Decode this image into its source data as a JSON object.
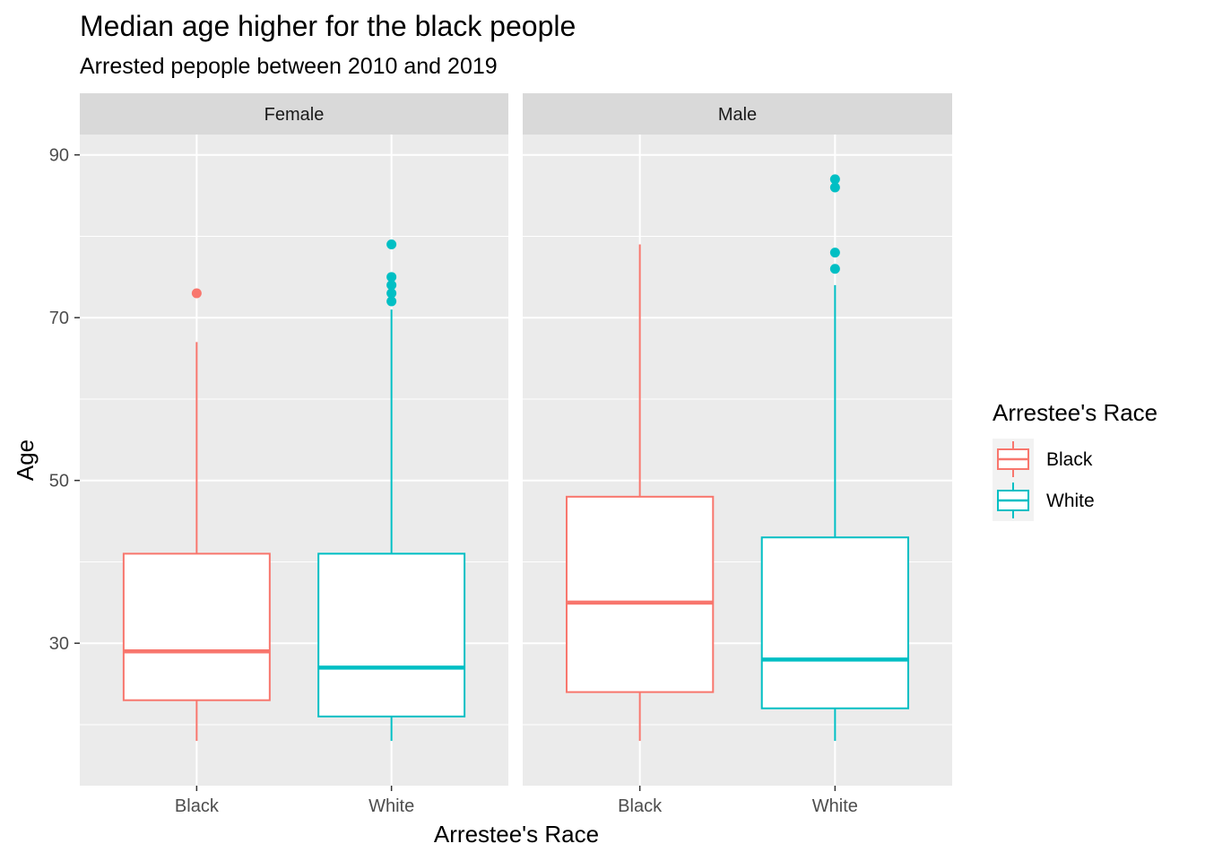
{
  "chart_data": {
    "type": "boxplot",
    "title": "Median age higher for the black people",
    "subtitle": "Arrested pepople between 2010 and 2019",
    "xlabel": "Arrestee's Race",
    "ylabel": "Age",
    "ylim": [
      12.5,
      92.5
    ],
    "yticks": [
      30,
      50,
      70,
      90
    ],
    "categories": [
      "Black",
      "White"
    ],
    "grid": true,
    "legend": {
      "title": "Arrestee's Race",
      "placement": "right",
      "entries": [
        {
          "label": "Black",
          "color": "#F8766D"
        },
        {
          "label": "White",
          "color": "#00BFC4"
        }
      ]
    },
    "facets": [
      {
        "label": "Female",
        "boxes": [
          {
            "category": "Black",
            "color": "#F8766D",
            "min": 18,
            "q1": 23,
            "median": 29,
            "q3": 41,
            "max": 67,
            "outliers": [
              73
            ]
          },
          {
            "category": "White",
            "color": "#00BFC4",
            "min": 18,
            "q1": 21,
            "median": 27,
            "q3": 41,
            "max": 71,
            "outliers": [
              72,
              73,
              74,
              75,
              79
            ]
          }
        ]
      },
      {
        "label": "Male",
        "boxes": [
          {
            "category": "Black",
            "color": "#F8766D",
            "min": 18,
            "q1": 24,
            "median": 35,
            "q3": 48,
            "max": 79,
            "outliers": []
          },
          {
            "category": "White",
            "color": "#00BFC4",
            "min": 18,
            "q1": 22,
            "median": 28,
            "q3": 43,
            "max": 74,
            "outliers": [
              76,
              78,
              86,
              87
            ]
          }
        ]
      }
    ]
  }
}
